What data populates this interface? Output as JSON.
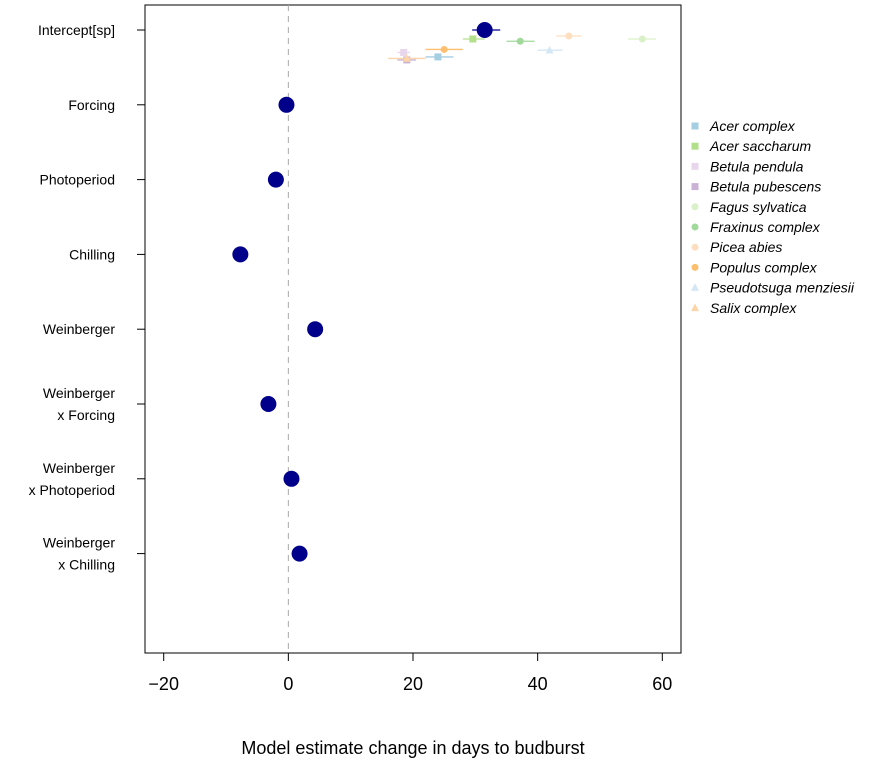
{
  "chart_data": {
    "type": "scatter",
    "title": "",
    "xlabel": "Model estimate change in days to budburst",
    "ylabel": "",
    "xlim": [
      -23,
      63
    ],
    "x_ticks": [
      -20,
      0,
      20,
      40,
      60
    ],
    "x_tick_labels": [
      "−20",
      "0",
      "20",
      "40",
      "60"
    ],
    "grid": false,
    "zero_line": {
      "x": 0,
      "style": "dashed",
      "color": "#aaaaaa"
    },
    "point_color": "#00008B",
    "rows": [
      "Intercept[sp]",
      "Forcing",
      "Photoperiod",
      "Chilling",
      "Weinberger",
      "Weinberger\nx Forcing",
      "Weinberger\nx Photoperiod",
      "Weinberger\nx Chilling"
    ],
    "main_estimates": [
      {
        "row": 0,
        "value": 31.5,
        "ci": [
          29.5,
          34
        ]
      },
      {
        "row": 1,
        "value": -0.3,
        "ci": [
          -1,
          0.4
        ]
      },
      {
        "row": 2,
        "value": -2,
        "ci": [
          -2.7,
          -1.3
        ]
      },
      {
        "row": 3,
        "value": -7.7,
        "ci": [
          -8.5,
          -6.9
        ]
      },
      {
        "row": 4,
        "value": 4.3,
        "ci": [
          3.6,
          5
        ]
      },
      {
        "row": 5,
        "value": -3.2,
        "ci": [
          -3.9,
          -2.5
        ]
      },
      {
        "row": 6,
        "value": 0.5,
        "ci": [
          -0.2,
          1.2
        ]
      },
      {
        "row": 7,
        "value": 1.8,
        "ci": [
          1.1,
          2.5
        ]
      }
    ],
    "legend": {
      "position": "right"
    },
    "series": [
      {
        "name": "Acer complex",
        "color": "#A6CEE3",
        "shape": "square",
        "value": 24,
        "ci": [
          22,
          26.5
        ],
        "offset": 0.36
      },
      {
        "name": "Acer saccharum",
        "color": "#B2DF8A",
        "shape": "square",
        "value": 29.6,
        "ci": [
          28,
          31.5
        ],
        "offset": 0.12
      },
      {
        "name": "Betula pendula",
        "color": "#E8D7EC",
        "shape": "square",
        "value": 18.5,
        "ci": [
          17.5,
          19.5
        ],
        "offset": 0.3
      },
      {
        "name": "Betula pubescens",
        "color": "#CAB2D6",
        "shape": "square",
        "value": 19,
        "ci": [
          17.5,
          20.5
        ],
        "offset": 0.4
      },
      {
        "name": "Fagus sylvatica",
        "color": "#D9F0C8",
        "shape": "circle",
        "value": 56.8,
        "ci": [
          54.5,
          59
        ],
        "offset": 0.12
      },
      {
        "name": "Fraxinus complex",
        "color": "#A1D99B",
        "shape": "circle",
        "value": 37.2,
        "ci": [
          35,
          39.5
        ],
        "offset": 0.15
      },
      {
        "name": "Picea abies",
        "color": "#FDDEBE",
        "shape": "circle",
        "value": 45,
        "ci": [
          43,
          47
        ],
        "offset": 0.08
      },
      {
        "name": "Populus complex",
        "color": "#FDBF6F",
        "shape": "circle",
        "value": 25,
        "ci": [
          22,
          28
        ],
        "offset": 0.26
      },
      {
        "name": "Pseudotsuga menziesii",
        "color": "#D5E7F5",
        "shape": "triangle",
        "value": 41.9,
        "ci": [
          40,
          44
        ],
        "offset": 0.27
      },
      {
        "name": "Salix complex",
        "color": "#FDD5A8",
        "shape": "triangle",
        "value": 19,
        "ci": [
          16,
          22
        ],
        "offset": 0.38
      }
    ]
  }
}
